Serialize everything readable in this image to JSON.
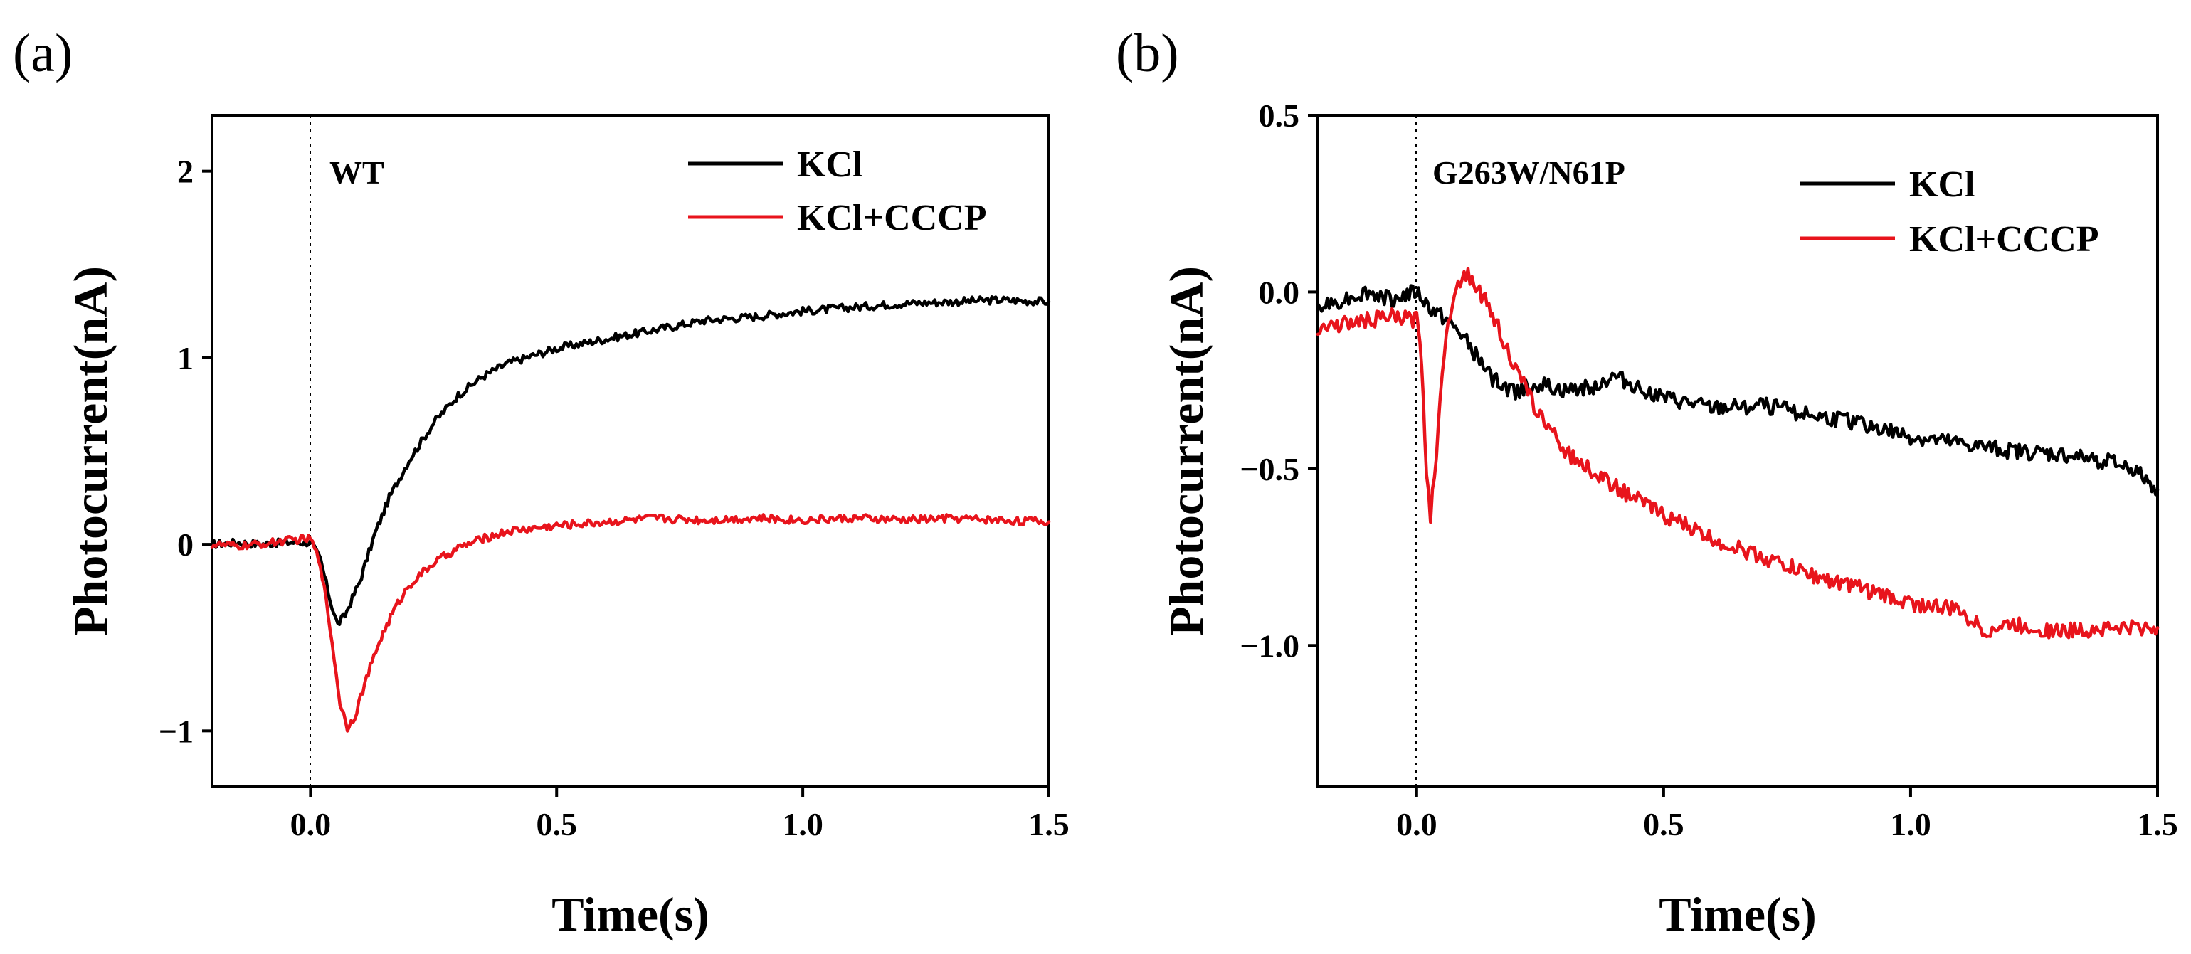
{
  "chart_data": [
    {
      "type": "line",
      "panel_label": "(a)",
      "annotation": "WT",
      "xlabel": "Time(s)",
      "ylabel": "Photocurrent(nA)",
      "xlim": [
        -0.2,
        1.5
      ],
      "ylim": [
        -1.3,
        2.3
      ],
      "xticks": [
        0.0,
        0.5,
        1.0,
        1.5
      ],
      "xtick_labels": [
        "0.0",
        "0.5",
        "1.0",
        "1.5"
      ],
      "yticks": [
        -1,
        0,
        1,
        2
      ],
      "ytick_labels": [
        "−1",
        "0",
        "1",
        "2"
      ],
      "vline_x": 0.0,
      "grid": false,
      "legend_position": "top-right",
      "series": [
        {
          "name": "KCl",
          "color": "#000000",
          "points": [
            [
              -0.2,
              0.0
            ],
            [
              -0.15,
              0.01
            ],
            [
              -0.1,
              0.0
            ],
            [
              -0.05,
              0.01
            ],
            [
              0.0,
              0.01
            ],
            [
              0.02,
              -0.08
            ],
            [
              0.04,
              -0.3
            ],
            [
              0.055,
              -0.43
            ],
            [
              0.07,
              -0.38
            ],
            [
              0.1,
              -0.2
            ],
            [
              0.13,
              0.05
            ],
            [
              0.16,
              0.25
            ],
            [
              0.2,
              0.45
            ],
            [
              0.25,
              0.65
            ],
            [
              0.3,
              0.8
            ],
            [
              0.35,
              0.9
            ],
            [
              0.4,
              0.97
            ],
            [
              0.5,
              1.05
            ],
            [
              0.6,
              1.1
            ],
            [
              0.7,
              1.15
            ],
            [
              0.8,
              1.2
            ],
            [
              0.9,
              1.22
            ],
            [
              1.0,
              1.25
            ],
            [
              1.1,
              1.27
            ],
            [
              1.2,
              1.29
            ],
            [
              1.3,
              1.3
            ],
            [
              1.4,
              1.31
            ],
            [
              1.5,
              1.3
            ]
          ]
        },
        {
          "name": "KCl+CCCP",
          "color": "#e8141c",
          "points": [
            [
              -0.2,
              0.0
            ],
            [
              -0.15,
              -0.01
            ],
            [
              -0.1,
              0.0
            ],
            [
              -0.05,
              0.02
            ],
            [
              0.0,
              0.03
            ],
            [
              0.02,
              -0.1
            ],
            [
              0.04,
              -0.45
            ],
            [
              0.06,
              -0.85
            ],
            [
              0.075,
              -0.98
            ],
            [
              0.09,
              -0.92
            ],
            [
              0.11,
              -0.75
            ],
            [
              0.14,
              -0.52
            ],
            [
              0.17,
              -0.35
            ],
            [
              0.2,
              -0.22
            ],
            [
              0.25,
              -0.1
            ],
            [
              0.3,
              -0.02
            ],
            [
              0.35,
              0.03
            ],
            [
              0.4,
              0.07
            ],
            [
              0.5,
              0.1
            ],
            [
              0.6,
              0.12
            ],
            [
              0.7,
              0.14
            ],
            [
              0.8,
              0.13
            ],
            [
              0.9,
              0.14
            ],
            [
              1.0,
              0.13
            ],
            [
              1.1,
              0.14
            ],
            [
              1.2,
              0.13
            ],
            [
              1.3,
              0.14
            ],
            [
              1.4,
              0.13
            ],
            [
              1.5,
              0.12
            ]
          ]
        }
      ]
    },
    {
      "type": "line",
      "panel_label": "(b)",
      "annotation": "G263W/N61P",
      "xlabel": "Time(s)",
      "ylabel": "Photocurrent(nA)",
      "xlim": [
        -0.2,
        1.5
      ],
      "ylim": [
        -1.4,
        0.5
      ],
      "xticks": [
        0.0,
        0.5,
        1.0,
        1.5
      ],
      "xtick_labels": [
        "0.0",
        "0.5",
        "1.0",
        "1.5"
      ],
      "yticks": [
        -1.0,
        -0.5,
        0.0,
        0.5
      ],
      "ytick_labels": [
        "−1.0",
        "−0.5",
        "0.0",
        "0.5"
      ],
      "vline_x": 0.0,
      "grid": false,
      "legend_position": "top-right",
      "series": [
        {
          "name": "KCl",
          "color": "#000000",
          "points": [
            [
              -0.2,
              -0.05
            ],
            [
              -0.15,
              -0.02
            ],
            [
              -0.1,
              0.0
            ],
            [
              -0.05,
              -0.02
            ],
            [
              0.0,
              0.0
            ],
            [
              0.03,
              -0.05
            ],
            [
              0.06,
              -0.08
            ],
            [
              0.09,
              -0.12
            ],
            [
              0.12,
              -0.18
            ],
            [
              0.15,
              -0.24
            ],
            [
              0.18,
              -0.27
            ],
            [
              0.2,
              -0.28
            ],
            [
              0.25,
              -0.26
            ],
            [
              0.3,
              -0.28
            ],
            [
              0.35,
              -0.27
            ],
            [
              0.4,
              -0.24
            ],
            [
              0.5,
              -0.3
            ],
            [
              0.6,
              -0.33
            ],
            [
              0.7,
              -0.32
            ],
            [
              0.8,
              -0.35
            ],
            [
              0.9,
              -0.37
            ],
            [
              1.0,
              -0.41
            ],
            [
              1.1,
              -0.43
            ],
            [
              1.2,
              -0.45
            ],
            [
              1.3,
              -0.46
            ],
            [
              1.4,
              -0.48
            ],
            [
              1.45,
              -0.5
            ],
            [
              1.5,
              -0.56
            ]
          ]
        },
        {
          "name": "KCl+CCCP",
          "color": "#e8141c",
          "points": [
            [
              -0.2,
              -0.1
            ],
            [
              -0.15,
              -0.09
            ],
            [
              -0.1,
              -0.08
            ],
            [
              -0.05,
              -0.07
            ],
            [
              0.0,
              -0.08
            ],
            [
              0.01,
              -0.2
            ],
            [
              0.02,
              -0.5
            ],
            [
              0.028,
              -0.63
            ],
            [
              0.04,
              -0.45
            ],
            [
              0.06,
              -0.1
            ],
            [
              0.08,
              0.02
            ],
            [
              0.1,
              0.05
            ],
            [
              0.12,
              0.02
            ],
            [
              0.15,
              -0.05
            ],
            [
              0.18,
              -0.15
            ],
            [
              0.2,
              -0.22
            ],
            [
              0.25,
              -0.35
            ],
            [
              0.3,
              -0.45
            ],
            [
              0.35,
              -0.5
            ],
            [
              0.4,
              -0.55
            ],
            [
              0.5,
              -0.63
            ],
            [
              0.6,
              -0.7
            ],
            [
              0.7,
              -0.75
            ],
            [
              0.8,
              -0.8
            ],
            [
              0.9,
              -0.84
            ],
            [
              1.0,
              -0.88
            ],
            [
              1.1,
              -0.9
            ],
            [
              1.15,
              -0.96
            ],
            [
              1.2,
              -0.94
            ],
            [
              1.3,
              -0.96
            ],
            [
              1.4,
              -0.95
            ],
            [
              1.5,
              -0.95
            ]
          ]
        }
      ]
    }
  ]
}
